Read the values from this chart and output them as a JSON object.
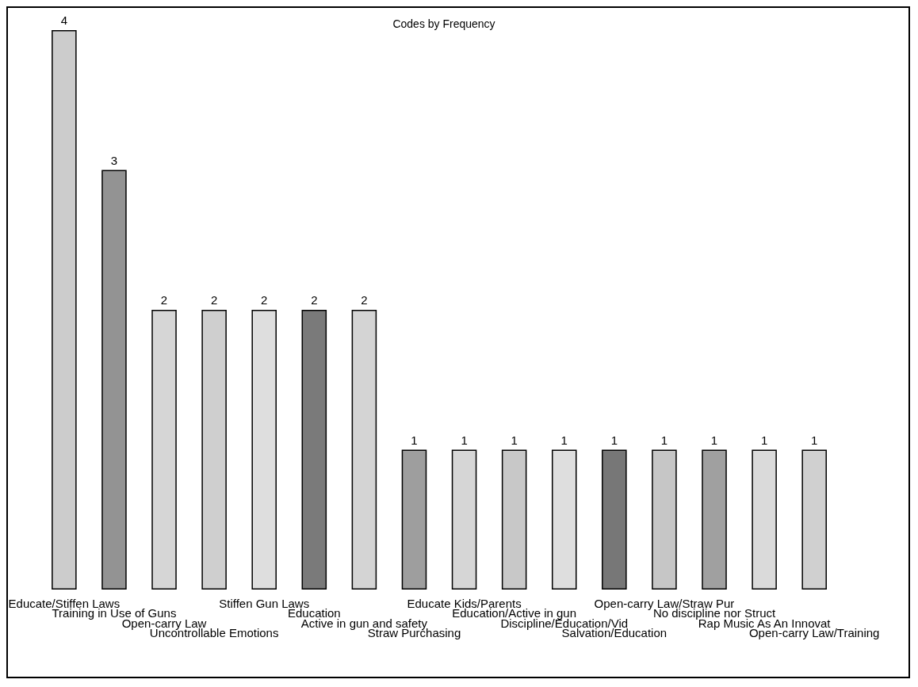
{
  "chart_data": {
    "type": "bar",
    "title": "Codes by Frequency",
    "categories": [
      "Educate/Stiffen Laws",
      "Training in Use of Guns",
      "Open-carry Law",
      "Uncontrollable Emotions",
      "Stiffen Gun Laws",
      "Education",
      "Active in gun and safety",
      "Straw Purchasing",
      "Educate Kids/Parents",
      "Education/Active in gun",
      "Discipline/Education/Vid",
      "Salvation/Education",
      "Open-carry Law/Straw Pur",
      "No discipline nor Struct",
      "Rap Music As An Innovat",
      "Open-carry Law/Training"
    ],
    "values": [
      4,
      3,
      2,
      2,
      2,
      2,
      2,
      1,
      1,
      1,
      1,
      1,
      1,
      1,
      1,
      1
    ],
    "colors": [
      "#cccccc",
      "#939393",
      "#d6d6d6",
      "#cfcfcf",
      "#dedede",
      "#7a7a7a",
      "#d4d4d4",
      "#9e9e9e",
      "#d6d6d6",
      "#c8c8c8",
      "#dedede",
      "#777777",
      "#c6c6c6",
      "#a0a0a0",
      "#dadada",
      "#d0d0d0"
    ],
    "data_labels": true
  }
}
